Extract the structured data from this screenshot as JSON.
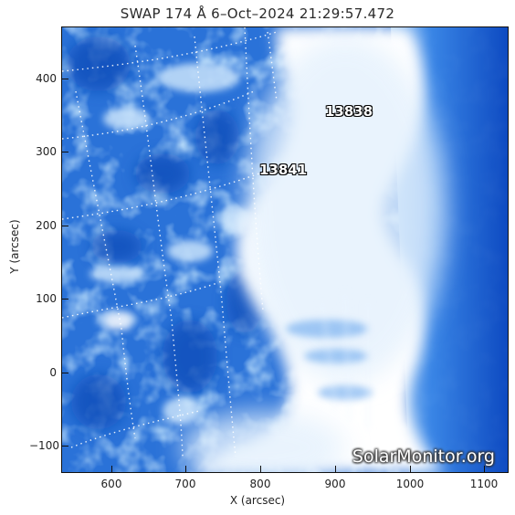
{
  "header": {
    "title": "SWAP 174 Å  6–Oct–2024 21:29:57.472"
  },
  "axes": {
    "xlabel": "X (arcsec)",
    "ylabel": "Y (arcsec)",
    "xticks": [
      "600",
      "700",
      "800",
      "900",
      "1000",
      "1100"
    ],
    "yticks": [
      "400",
      "300",
      "200",
      "100",
      "0",
      "−100"
    ]
  },
  "regions": [
    {
      "label": "13838"
    },
    {
      "label": "13841"
    }
  ],
  "watermark": "SolarMonitor.org",
  "colors": {
    "deep_blue": "#0a3fb0",
    "mid_blue": "#2f7ee0",
    "light_blue": "#8ec2f5",
    "flare_white": "#ffffff"
  }
}
